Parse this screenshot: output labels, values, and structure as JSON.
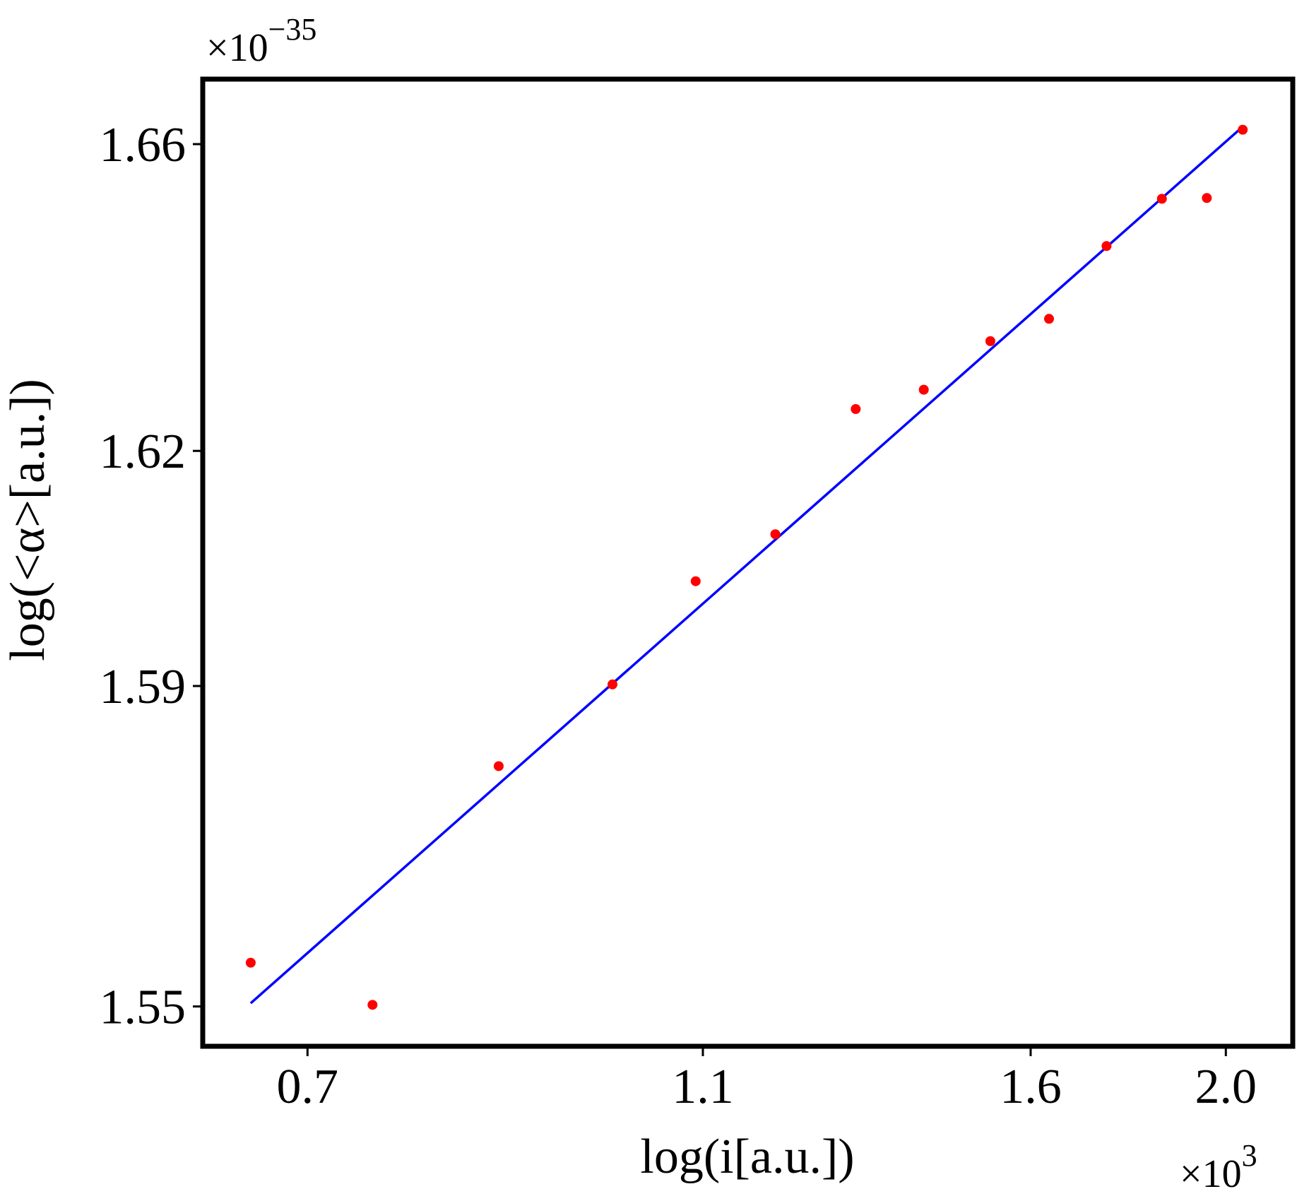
{
  "chart_data": {
    "type": "scatter",
    "x_label": "log(i[a.u.])",
    "y_label": "log(<α>[a.u.])",
    "x_multiplier": {
      "base": "×10",
      "exponent": "3"
    },
    "y_multiplier": {
      "base": "×10",
      "exponent": "−35"
    },
    "xscale": "log",
    "yscale": "log",
    "xlim": [
      0.621,
      2.159
    ],
    "ylim": [
      1.5451,
      1.6686
    ],
    "xticks": [
      0.7,
      1.1,
      1.6,
      {
        "value": 2.0,
        "label": "2.0"
      }
    ],
    "yticks": [
      1.55,
      1.59,
      1.62,
      1.66
    ],
    "color": "#ff0000",
    "x": [
      0.656,
      0.754,
      0.871,
      0.992,
      1.091,
      1.195,
      1.31,
      1.416,
      1.528,
      1.634,
      1.745,
      1.859,
      1.957,
      2.039
    ],
    "values": [
      1.5554,
      1.5502,
      1.5799,
      1.5902,
      1.6033,
      1.6093,
      1.6254,
      1.6279,
      1.6342,
      1.6371,
      1.6466,
      1.6528,
      1.6529,
      1.6619
    ],
    "fit_line": {
      "color": "#0000ff",
      "x": [
        0.656,
        2.039
      ],
      "values": [
        1.5504,
        1.6623
      ]
    }
  }
}
